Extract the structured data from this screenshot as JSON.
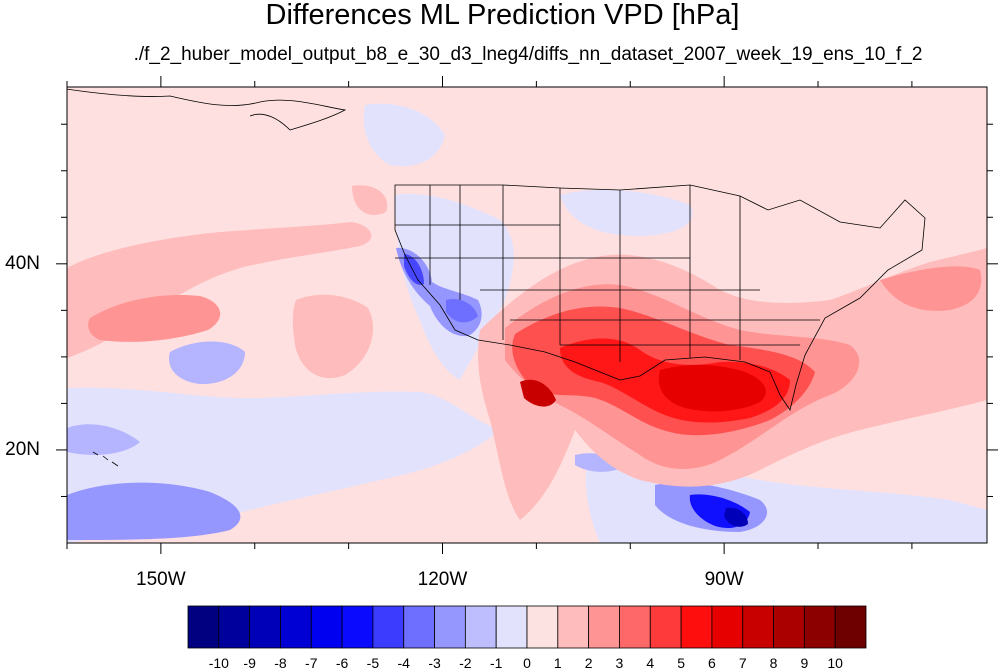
{
  "title": "Differences ML Prediction VPD [hPa]",
  "subtitle": "./f_2_huber_model_output_b8_e_30_d3_lneg4/diffs_nn_dataset_2007_week_19_ens_10_f_2",
  "map": {
    "extent": {
      "lon": [
        -160,
        -62
      ],
      "lat": [
        10,
        59
      ]
    },
    "lon_ticks": [
      {
        "value": -150,
        "label": "150W"
      },
      {
        "value": -120,
        "label": "120W"
      },
      {
        "value": -90,
        "label": "90W"
      }
    ],
    "lat_ticks": [
      {
        "value": 40,
        "label": "40N"
      },
      {
        "value": 20,
        "label": "20N"
      }
    ],
    "background_color": "#fee0e0",
    "boundary_color": "#000000"
  },
  "colorbar": {
    "labels": [
      "-10",
      "-9",
      "-8",
      "-7",
      "-6",
      "-5",
      "-4",
      "-3",
      "-2",
      "-1",
      "0",
      "1",
      "2",
      "3",
      "4",
      "5",
      "6",
      "7",
      "8",
      "9",
      "10"
    ],
    "colors": [
      "#000080",
      "#00009c",
      "#0000b8",
      "#0000d4",
      "#0000f0",
      "#0a0aff",
      "#3c3cff",
      "#6e6eff",
      "#9696ff",
      "#bebeff",
      "#e2e2fd",
      "#fde2e2",
      "#ffbcbc",
      "#ff9494",
      "#ff6868",
      "#ff3a3a",
      "#ff0e0e",
      "#e60000",
      "#c80000",
      "#aa0000",
      "#8c0000",
      "#6e0000"
    ]
  }
}
